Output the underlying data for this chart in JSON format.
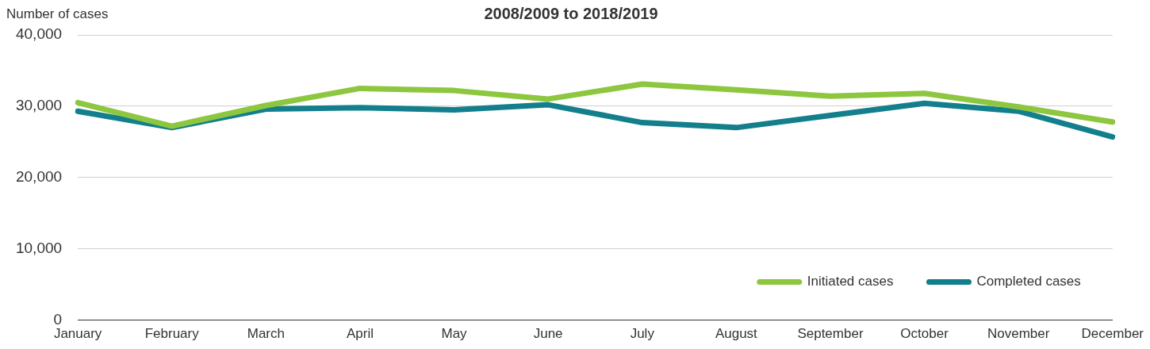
{
  "chart_data": {
    "type": "line",
    "title": "2008/2009 to 2018/2019",
    "ylabel": "Number of cases",
    "categories": [
      "January",
      "February",
      "March",
      "April",
      "May",
      "June",
      "July",
      "August",
      "September",
      "October",
      "November",
      "December"
    ],
    "series": [
      {
        "name": "Initiated cases",
        "color": "#8dc63f",
        "values": [
          30500,
          27200,
          30100,
          32500,
          32200,
          31000,
          33100,
          32300,
          31400,
          31800,
          29900,
          27800
        ]
      },
      {
        "name": "Completed cases",
        "color": "#137f8c",
        "values": [
          29300,
          27000,
          29600,
          29800,
          29500,
          30200,
          27700,
          27000,
          28700,
          30400,
          29300,
          25700
        ]
      }
    ],
    "ylim": [
      0,
      40000
    ],
    "yticks": [
      {
        "value": 0,
        "label": "0"
      },
      {
        "value": 10000,
        "label": "10,000"
      },
      {
        "value": 20000,
        "label": "20,000"
      },
      {
        "value": 30000,
        "label": "30,000"
      },
      {
        "value": 40000,
        "label": "40,000"
      }
    ],
    "grid": "y",
    "legend": "bottom right",
    "marker": "none",
    "line_style": "solid"
  }
}
